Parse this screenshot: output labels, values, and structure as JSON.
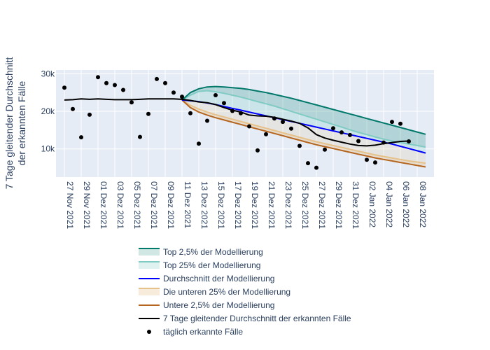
{
  "chart_data": {
    "type": "line",
    "ylabel_lines": [
      "7 Tage gleitender Durchschnitt",
      "der erkannten Fälle"
    ],
    "xlabel": "",
    "ylim": [
      2500,
      31000
    ],
    "y_ticks": [
      10000,
      20000,
      30000
    ],
    "y_tick_labels": [
      "10k",
      "20k",
      "30k"
    ],
    "x_start": "2021-11-26",
    "x_end": "2022-01-10",
    "x_ticks": [
      "2021-11-27",
      "2021-11-29",
      "2021-12-01",
      "2021-12-03",
      "2021-12-05",
      "2021-12-07",
      "2021-12-09",
      "2021-12-11",
      "2021-12-13",
      "2021-12-15",
      "2021-12-17",
      "2021-12-19",
      "2021-12-21",
      "2021-12-23",
      "2021-12-25",
      "2021-12-27",
      "2021-12-29",
      "2021-12-31",
      "2022-01-02",
      "2022-01-04",
      "2022-01-06",
      "2022-01-08"
    ],
    "x_tick_labels": [
      "27 Nov 2021",
      "29 Nov 2021",
      "01 Dez 2021",
      "03 Dez 2021",
      "05 Dez 2021",
      "07 Dez 2021",
      "09 Dez 2021",
      "11 Dez 2021",
      "13 Dez 2021",
      "15 Dez 2021",
      "17 Dez 2021",
      "19 Dez 2021",
      "21 Dez 2021",
      "23 Dez 2021",
      "25 Dez 2021",
      "27 Dez 2021",
      "29 Dez 2021",
      "31 Dez 2021",
      "02 Jan 2022",
      "04 Jan 2022",
      "06 Jan 2022",
      "08 Jan 2022"
    ],
    "grid": true,
    "legend_position": "bottom",
    "legend": [
      {
        "label": "Top 2,5% der Modellierung",
        "kind": "band",
        "color": "#00796B",
        "fill": "rgba(0,121,107,0.18)"
      },
      {
        "label": "Top 25% der Modellierung",
        "kind": "band",
        "color": "#80CBC4",
        "fill": "rgba(128,203,196,0.25)"
      },
      {
        "label": "Durchschnitt der Modellierung",
        "kind": "line",
        "color": "#0000FF"
      },
      {
        "label": "Die unteren 25% der Modellierung",
        "kind": "band",
        "color": "#E6C18A",
        "fill": "rgba(230,193,138,0.3)"
      },
      {
        "label": "Untere 2,5% der Modellierung",
        "kind": "line",
        "color": "#B5651D"
      },
      {
        "label": "7 Tage gleitender Durchschnitt der erkannten Fälle",
        "kind": "line",
        "color": "#000000"
      },
      {
        "label": "täglich erkannte Fälle",
        "kind": "marker",
        "color": "#000000"
      }
    ],
    "series": [
      {
        "name": "7 Tage gleitender Durchschnitt der erkannten Fälle",
        "color": "#000000",
        "x": [
          "2021-11-27",
          "2021-11-28",
          "2021-11-29",
          "2021-11-30",
          "2021-12-01",
          "2021-12-02",
          "2021-12-03",
          "2021-12-04",
          "2021-12-05",
          "2021-12-06",
          "2021-12-07",
          "2021-12-08",
          "2021-12-09",
          "2021-12-10",
          "2021-12-11",
          "2021-12-12",
          "2021-12-13",
          "2021-12-14",
          "2021-12-15",
          "2021-12-16",
          "2021-12-17",
          "2021-12-18",
          "2021-12-19",
          "2021-12-20",
          "2021-12-21",
          "2021-12-22",
          "2021-12-23",
          "2021-12-24",
          "2021-12-25",
          "2021-12-26",
          "2021-12-27",
          "2021-12-28",
          "2021-12-29",
          "2021-12-30",
          "2021-12-31",
          "2022-01-01",
          "2022-01-02",
          "2022-01-03",
          "2022-01-04",
          "2022-01-05",
          "2022-01-06",
          "2022-01-07"
        ],
        "y": [
          23000,
          23100,
          23300,
          23200,
          23300,
          23200,
          23100,
          23100,
          23100,
          23200,
          23300,
          23300,
          23300,
          23300,
          23200,
          22900,
          22500,
          22300,
          21800,
          21000,
          20300,
          19800,
          19000,
          18800,
          18700,
          18400,
          17900,
          17400,
          16800,
          15600,
          13800,
          12900,
          12300,
          11800,
          11300,
          10900,
          10800,
          11000,
          11400,
          11700,
          12000,
          12100
        ]
      },
      {
        "name": "täglich erkannte Fälle",
        "color": "#000000",
        "x": [
          "2021-11-27",
          "2021-11-28",
          "2021-11-29",
          "2021-11-30",
          "2021-12-01",
          "2021-12-02",
          "2021-12-03",
          "2021-12-04",
          "2021-12-05",
          "2021-12-06",
          "2021-12-07",
          "2021-12-08",
          "2021-12-09",
          "2021-12-10",
          "2021-12-11",
          "2021-12-12",
          "2021-12-13",
          "2021-12-14",
          "2021-12-15",
          "2021-12-16",
          "2021-12-17",
          "2021-12-18",
          "2021-12-19",
          "2021-12-20",
          "2021-12-21",
          "2021-12-22",
          "2021-12-23",
          "2021-12-24",
          "2021-12-25",
          "2021-12-26",
          "2021-12-27",
          "2021-12-28",
          "2021-12-29",
          "2021-12-30",
          "2021-12-31",
          "2022-01-01",
          "2022-01-02",
          "2022-01-03",
          "2022-01-04",
          "2022-01-05",
          "2022-01-06",
          "2022-01-07"
        ],
        "y": [
          26300,
          20600,
          13100,
          19100,
          29100,
          27500,
          27000,
          25700,
          22400,
          13200,
          19300,
          28600,
          27500,
          25000,
          23900,
          19500,
          11400,
          17500,
          24300,
          22200,
          20100,
          19500,
          16000,
          9600,
          13900,
          18100,
          17200,
          15400,
          10800,
          6200,
          5000,
          9800,
          15500,
          14400,
          13700,
          12100,
          7100,
          6400,
          11700,
          17200,
          16700,
          12000
        ]
      },
      {
        "name": "Top 2,5% der Modellierung",
        "color": "#00796B",
        "x": [
          "2021-12-11",
          "2021-12-12",
          "2021-12-13",
          "2021-12-14",
          "2021-12-15",
          "2021-12-16",
          "2021-12-17",
          "2021-12-18",
          "2021-12-19",
          "2021-12-20",
          "2021-12-21",
          "2021-12-22",
          "2021-12-23",
          "2021-12-24",
          "2021-12-25",
          "2021-12-26",
          "2021-12-27",
          "2021-12-28",
          "2021-12-29",
          "2021-12-30",
          "2021-12-31",
          "2022-01-01",
          "2022-01-02",
          "2022-01-03",
          "2022-01-04",
          "2022-01-05",
          "2022-01-06",
          "2022-01-07",
          "2022-01-08",
          "2022-01-09"
        ],
        "y": [
          23000,
          25000,
          26000,
          26500,
          26600,
          26500,
          26300,
          26100,
          25800,
          25400,
          25000,
          24500,
          24000,
          23500,
          22900,
          22300,
          21700,
          21100,
          20500,
          19900,
          19300,
          18700,
          18100,
          17500,
          16900,
          16300,
          15700,
          15100,
          14500,
          13900
        ]
      },
      {
        "name": "Top 25% der Modellierung",
        "color": "#80CBC4",
        "x": [
          "2021-12-11",
          "2021-12-12",
          "2021-12-13",
          "2021-12-14",
          "2021-12-15",
          "2021-12-16",
          "2021-12-17",
          "2021-12-18",
          "2021-12-19",
          "2021-12-20",
          "2021-12-21",
          "2021-12-22",
          "2021-12-23",
          "2021-12-24",
          "2021-12-25",
          "2021-12-26",
          "2021-12-27",
          "2021-12-28",
          "2021-12-29",
          "2021-12-30",
          "2021-12-31",
          "2022-01-01",
          "2022-01-02",
          "2022-01-03",
          "2022-01-04",
          "2022-01-05",
          "2022-01-06",
          "2022-01-07",
          "2022-01-08",
          "2022-01-09"
        ],
        "y": [
          23000,
          24300,
          25300,
          25500,
          25200,
          24800,
          24300,
          23800,
          23200,
          22600,
          22000,
          21400,
          20700,
          20000,
          19300,
          18600,
          17900,
          17200,
          16500,
          15800,
          15100,
          14400,
          13800,
          13200,
          12600,
          12100,
          11700,
          11300,
          10900,
          10500
        ]
      },
      {
        "name": "Durchschnitt der Modellierung",
        "color": "#0000FF",
        "x": [
          "2021-12-11",
          "2021-12-12",
          "2021-12-13",
          "2021-12-14",
          "2021-12-15",
          "2021-12-16",
          "2021-12-17",
          "2021-12-18",
          "2021-12-19",
          "2021-12-20",
          "2021-12-21",
          "2021-12-22",
          "2021-12-23",
          "2021-12-24",
          "2021-12-25",
          "2021-12-26",
          "2021-12-27",
          "2021-12-28",
          "2021-12-29",
          "2021-12-30",
          "2021-12-31",
          "2022-01-01",
          "2022-01-02",
          "2022-01-03",
          "2022-01-04",
          "2022-01-05",
          "2022-01-06",
          "2022-01-07",
          "2022-01-08",
          "2022-01-09"
        ],
        "y": [
          23000,
          22800,
          22600,
          22200,
          21800,
          21300,
          20800,
          20300,
          19800,
          19300,
          18800,
          18300,
          17800,
          17300,
          16800,
          16300,
          15800,
          15300,
          14800,
          14300,
          13800,
          13300,
          12800,
          12300,
          11800,
          11300,
          10700,
          10100,
          9500,
          8900
        ]
      },
      {
        "name": "Die unteren 25% der Modellierung",
        "color": "#E6C18A",
        "x": [
          "2021-12-11",
          "2021-12-12",
          "2021-12-13",
          "2021-12-14",
          "2021-12-15",
          "2021-12-16",
          "2021-12-17",
          "2021-12-18",
          "2021-12-19",
          "2021-12-20",
          "2021-12-21",
          "2021-12-22",
          "2021-12-23",
          "2021-12-24",
          "2021-12-25",
          "2021-12-26",
          "2021-12-27",
          "2021-12-28",
          "2021-12-29",
          "2021-12-30",
          "2021-12-31",
          "2022-01-01",
          "2022-01-02",
          "2022-01-03",
          "2022-01-04",
          "2022-01-05",
          "2022-01-06",
          "2022-01-07",
          "2022-01-08",
          "2022-01-09"
        ],
        "y": [
          23000,
          21600,
          20600,
          19800,
          19100,
          18500,
          17900,
          17300,
          16700,
          16100,
          15500,
          14900,
          14300,
          13700,
          13100,
          12500,
          11900,
          11400,
          10900,
          10400,
          9900,
          9400,
          8900,
          8400,
          8000,
          7600,
          7200,
          6800,
          6500,
          6200
        ]
      },
      {
        "name": "Untere 2,5% der Modellierung",
        "color": "#B5651D",
        "x": [
          "2021-12-11",
          "2021-12-12",
          "2021-12-13",
          "2021-12-14",
          "2021-12-15",
          "2021-12-16",
          "2021-12-17",
          "2021-12-18",
          "2021-12-19",
          "2021-12-20",
          "2021-12-21",
          "2021-12-22",
          "2021-12-23",
          "2021-12-24",
          "2021-12-25",
          "2021-12-26",
          "2021-12-27",
          "2021-12-28",
          "2021-12-29",
          "2021-12-30",
          "2021-12-31",
          "2022-01-01",
          "2022-01-02",
          "2022-01-03",
          "2022-01-04",
          "2022-01-05",
          "2022-01-06",
          "2022-01-07",
          "2022-01-08",
          "2022-01-09"
        ],
        "y": [
          23000,
          21000,
          19800,
          19000,
          18300,
          17700,
          17100,
          16500,
          15900,
          15300,
          14700,
          14100,
          13500,
          12900,
          12300,
          11700,
          11100,
          10600,
          10100,
          9600,
          9100,
          8600,
          8100,
          7600,
          7200,
          6800,
          6400,
          6000,
          5600,
          5200
        ]
      }
    ],
    "bands": [
      {
        "upper": "Top 2,5% der Modellierung",
        "lower": "Top 25% der Modellierung",
        "fill": "rgba(0,121,107,0.22)"
      },
      {
        "upper": "Top 25% der Modellierung",
        "lower": "Durchschnitt der Modellierung",
        "fill": "rgba(128,203,196,0.25)"
      },
      {
        "upper": "Die unteren 25% der Modellierung",
        "lower": "Untere 2,5% der Modellierung",
        "fill": "rgba(230,193,138,0.35)"
      },
      {
        "upper": "Durchschnitt der Modellierung",
        "lower": "Die unteren 25% der Modellierung",
        "fill": "rgba(230,193,138,0.18)"
      }
    ]
  }
}
